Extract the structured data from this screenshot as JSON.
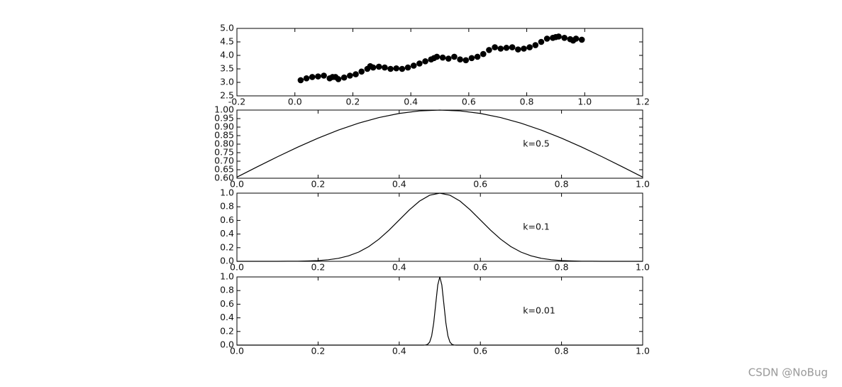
{
  "chart_data": [
    {
      "type": "scatter",
      "color": "#000000",
      "x": [
        0.02,
        0.04,
        0.06,
        0.08,
        0.1,
        0.12,
        0.13,
        0.14,
        0.15,
        0.17,
        0.19,
        0.21,
        0.23,
        0.25,
        0.26,
        0.27,
        0.29,
        0.31,
        0.33,
        0.35,
        0.37,
        0.39,
        0.41,
        0.43,
        0.45,
        0.47,
        0.48,
        0.49,
        0.51,
        0.53,
        0.55,
        0.57,
        0.59,
        0.61,
        0.63,
        0.65,
        0.67,
        0.69,
        0.71,
        0.73,
        0.75,
        0.77,
        0.79,
        0.81,
        0.83,
        0.85,
        0.87,
        0.89,
        0.9,
        0.91,
        0.93,
        0.95,
        0.96,
        0.97,
        0.99
      ],
      "values": [
        3.08,
        3.15,
        3.2,
        3.22,
        3.25,
        3.15,
        3.2,
        3.2,
        3.12,
        3.18,
        3.25,
        3.3,
        3.4,
        3.5,
        3.6,
        3.55,
        3.58,
        3.55,
        3.5,
        3.52,
        3.5,
        3.55,
        3.62,
        3.7,
        3.78,
        3.85,
        3.9,
        3.95,
        3.92,
        3.88,
        3.95,
        3.85,
        3.82,
        3.9,
        3.95,
        4.05,
        4.2,
        4.3,
        4.25,
        4.28,
        4.3,
        4.22,
        4.25,
        4.3,
        4.38,
        4.5,
        4.62,
        4.65,
        4.68,
        4.7,
        4.65,
        4.6,
        4.55,
        4.62,
        4.58
      ],
      "xlim": [
        -0.2,
        1.2
      ],
      "xticks": [
        -0.2,
        {
          "value": 0,
          "label": "0.0"
        },
        0.2,
        0.4,
        0.6,
        0.8,
        {
          "value": 1,
          "label": "1.0"
        },
        1.2
      ],
      "ylim": [
        2.5,
        5
      ],
      "yticks": [
        2.5,
        {
          "value": 3,
          "label": "3.0"
        },
        3.5,
        {
          "value": 4,
          "label": "4.0"
        },
        4.5,
        {
          "value": 5,
          "label": "5.0"
        }
      ]
    },
    {
      "type": "line",
      "color": "#000000",
      "annotation": "k=0.5",
      "x": [
        0,
        0.05,
        0.1,
        0.15,
        0.2,
        0.25,
        0.3,
        0.35,
        0.4,
        0.45,
        0.5,
        0.55,
        0.6,
        0.65,
        0.7,
        0.75,
        0.8,
        0.85,
        0.9,
        0.95,
        1
      ],
      "values": [
        0.6065,
        0.667,
        0.7261,
        0.7827,
        0.8353,
        0.8825,
        0.9231,
        0.956,
        0.9802,
        0.995,
        1,
        0.995,
        0.9802,
        0.956,
        0.9231,
        0.8825,
        0.8353,
        0.7827,
        0.7261,
        0.667,
        0.6065
      ],
      "xlim": [
        0,
        1
      ],
      "xticks": [
        {
          "value": 0,
          "label": "0.0"
        },
        0.2,
        0.4,
        0.6,
        0.8,
        {
          "value": 1,
          "label": "1.0"
        }
      ],
      "ylim": [
        0.6,
        1
      ],
      "yticks": [
        {
          "value": 0.6,
          "label": "0.60"
        },
        0.65,
        {
          "value": 0.7,
          "label": "0.70"
        },
        0.75,
        {
          "value": 0.8,
          "label": "0.80"
        },
        0.85,
        {
          "value": 0.9,
          "label": "0.90"
        },
        0.95,
        {
          "value": 1,
          "label": "1.00"
        }
      ]
    },
    {
      "type": "line",
      "color": "#000000",
      "annotation": "k=0.1",
      "x": [
        0,
        0.025,
        0.05,
        0.075,
        0.1,
        0.125,
        0.15,
        0.175,
        0.2,
        0.225,
        0.25,
        0.275,
        0.3,
        0.325,
        0.35,
        0.375,
        0.4,
        0.425,
        0.45,
        0.475,
        0.5,
        0.525,
        0.55,
        0.575,
        0.6,
        0.625,
        0.65,
        0.675,
        0.7,
        0.725,
        0.75,
        0.775,
        0.8,
        0.825,
        0.85,
        0.875,
        0.9,
        0.925,
        0.95,
        0.975,
        1
      ],
      "values": [
        0,
        0,
        0,
        0.0001,
        0.0003,
        0.0009,
        0.0022,
        0.0051,
        0.0111,
        0.0228,
        0.0439,
        0.0796,
        0.1353,
        0.2163,
        0.3247,
        0.4578,
        0.6065,
        0.7548,
        0.8825,
        0.9692,
        1,
        0.9692,
        0.8825,
        0.7548,
        0.6065,
        0.4578,
        0.3247,
        0.2163,
        0.1353,
        0.0796,
        0.0439,
        0.0228,
        0.0111,
        0.0051,
        0.0022,
        0.0009,
        0.0003,
        0.0001,
        0,
        0,
        0
      ],
      "xlim": [
        0,
        1
      ],
      "xticks": [
        {
          "value": 0,
          "label": "0.0"
        },
        0.2,
        0.4,
        0.6,
        0.8,
        {
          "value": 1,
          "label": "1.0"
        }
      ],
      "ylim": [
        0,
        1
      ],
      "yticks": [
        {
          "value": 0,
          "label": "0.0"
        },
        0.2,
        0.4,
        0.6,
        0.8,
        {
          "value": 1,
          "label": "1.0"
        }
      ]
    },
    {
      "type": "line",
      "color": "#000000",
      "annotation": "k=0.01",
      "x": [
        0,
        0.45,
        0.46,
        0.465,
        0.47,
        0.475,
        0.48,
        0.485,
        0.49,
        0.495,
        0.5,
        0.505,
        0.51,
        0.515,
        0.52,
        0.525,
        0.53,
        0.535,
        0.54,
        0.55,
        1
      ],
      "values": [
        0,
        0,
        0.0003,
        0.0022,
        0.0111,
        0.0439,
        0.1353,
        0.3247,
        0.6065,
        0.8825,
        1,
        0.8825,
        0.6065,
        0.3247,
        0.1353,
        0.0439,
        0.0111,
        0.0022,
        0.0003,
        0,
        0
      ],
      "xlim": [
        0,
        1
      ],
      "xticks": [
        {
          "value": 0,
          "label": "0.0"
        },
        0.2,
        0.4,
        0.6,
        0.8,
        {
          "value": 1,
          "label": "1.0"
        }
      ],
      "ylim": [
        0,
        1
      ],
      "yticks": [
        {
          "value": 0,
          "label": "0.0"
        },
        0.2,
        0.4,
        0.6,
        0.8,
        {
          "value": 1,
          "label": "1.0"
        }
      ]
    }
  ],
  "watermark": "CSDN @NoBug"
}
